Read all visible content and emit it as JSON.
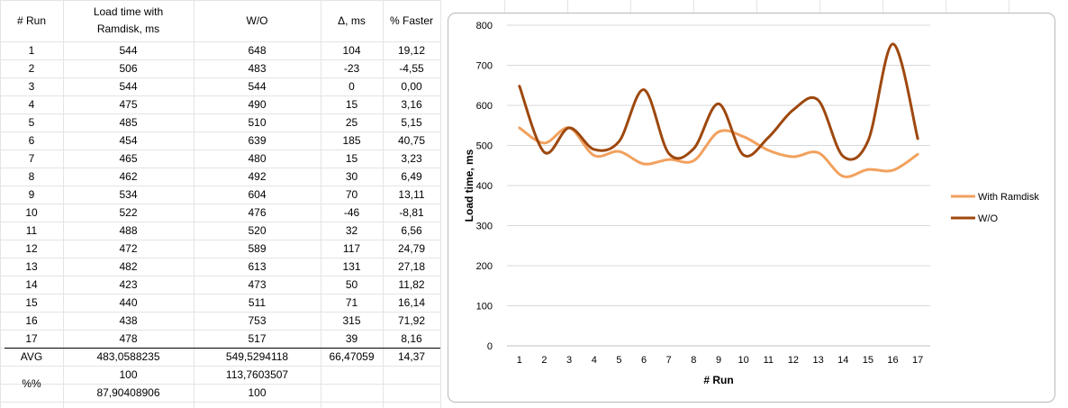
{
  "table": {
    "headers": {
      "run": "# Run",
      "load": "Load time with Ramdisk, ms",
      "wo": "W/O",
      "delta": "Δ, ms",
      "faster": "% Faster"
    },
    "rows": [
      [
        "1",
        "544",
        "648",
        "104",
        "19,12"
      ],
      [
        "2",
        "506",
        "483",
        "-23",
        "-4,55"
      ],
      [
        "3",
        "544",
        "544",
        "0",
        "0,00"
      ],
      [
        "4",
        "475",
        "490",
        "15",
        "3,16"
      ],
      [
        "5",
        "485",
        "510",
        "25",
        "5,15"
      ],
      [
        "6",
        "454",
        "639",
        "185",
        "40,75"
      ],
      [
        "7",
        "465",
        "480",
        "15",
        "3,23"
      ],
      [
        "8",
        "462",
        "492",
        "30",
        "6,49"
      ],
      [
        "9",
        "534",
        "604",
        "70",
        "13,11"
      ],
      [
        "10",
        "522",
        "476",
        "-46",
        "-8,81"
      ],
      [
        "11",
        "488",
        "520",
        "32",
        "6,56"
      ],
      [
        "12",
        "472",
        "589",
        "117",
        "24,79"
      ],
      [
        "13",
        "482",
        "613",
        "131",
        "27,18"
      ],
      [
        "14",
        "423",
        "473",
        "50",
        "11,82"
      ],
      [
        "15",
        "440",
        "511",
        "71",
        "16,14"
      ],
      [
        "16",
        "438",
        "753",
        "315",
        "71,92"
      ],
      [
        "17",
        "478",
        "517",
        "39",
        "8,16"
      ]
    ],
    "avg": {
      "label": "AVG",
      "load": "483,0588235",
      "wo": "549,5294118",
      "delta": "66,47059",
      "faster": "14,37"
    },
    "pct": {
      "label": "%%",
      "row1_load": "100",
      "row1_wo": "113,7603507",
      "row2_load": "87,90408906",
      "row2_wo": "100"
    }
  },
  "colors": {
    "with_ramdisk": "#F2A15E",
    "wo": "#9E480E",
    "gridline": "#d9d9d9",
    "cell_border": "#e4e4e4",
    "chart_border": "#b9b9b9"
  },
  "chart_data": {
    "type": "line",
    "smoothed": true,
    "title": "",
    "xlabel": "# Run",
    "ylabel": "Load time, ms",
    "x": [
      1,
      2,
      3,
      4,
      5,
      6,
      7,
      8,
      9,
      10,
      11,
      12,
      13,
      14,
      15,
      16,
      17
    ],
    "ylim": [
      0,
      800
    ],
    "yticks": [
      0,
      100,
      200,
      300,
      400,
      500,
      600,
      700,
      800
    ],
    "grid": true,
    "legend_position": "right",
    "series": [
      {
        "name": "With Ramdisk",
        "values": [
          544,
          506,
          544,
          475,
          485,
          454,
          465,
          462,
          534,
          522,
          488,
          472,
          482,
          423,
          440,
          438,
          478
        ]
      },
      {
        "name": "W/O",
        "values": [
          648,
          483,
          544,
          490,
          510,
          639,
          480,
          492,
          604,
          476,
          520,
          589,
          613,
          473,
          511,
          753,
          517
        ]
      }
    ]
  }
}
